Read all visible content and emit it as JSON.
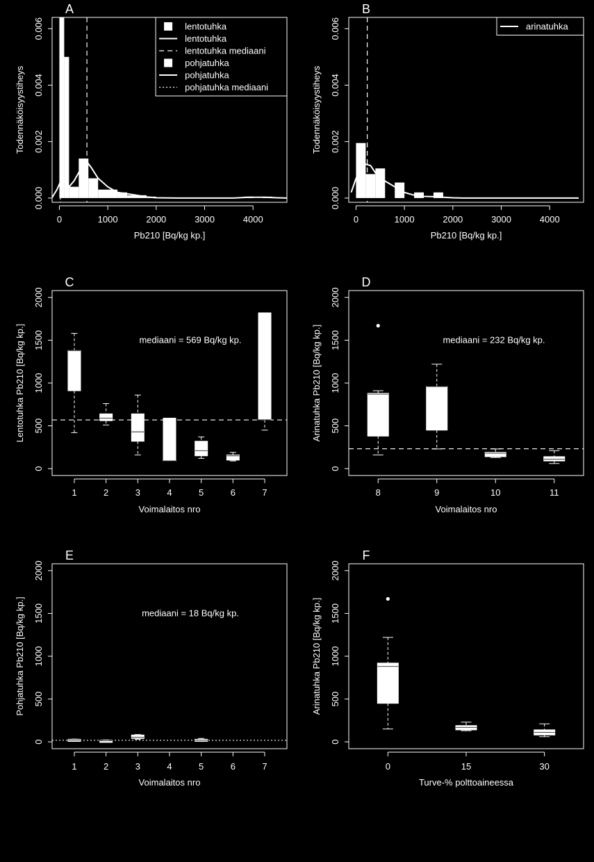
{
  "colors": {
    "background": "#000000",
    "foreground": "#ffffff"
  },
  "chart_data": [
    {
      "panel": "A",
      "type": "histogram",
      "xlabel": "Pb210 [Bq/kg kp.]",
      "ylabel": "Todennäköisyystiheys",
      "xlim": [
        -150,
        4700
      ],
      "ylim": [
        -0.00015,
        0.0064
      ],
      "xticks": [
        0,
        1000,
        2000,
        3000,
        4000
      ],
      "yticks": [
        0.0,
        0.002,
        0.004,
        0.006
      ],
      "ytick_labels": [
        "0.000",
        "0.002",
        "0.004",
        "0.006"
      ],
      "legend": {
        "position": "top-right",
        "entries": [
          {
            "label": "lentotuhka",
            "kind": "box"
          },
          {
            "label": "lentotuhka",
            "kind": "line"
          },
          {
            "label": "lentotuhka mediaani",
            "kind": "dashed"
          },
          {
            "label": "pohjatuhka",
            "kind": "box"
          },
          {
            "label": "pohjatuhka",
            "kind": "line"
          },
          {
            "label": "pohjatuhka mediaani",
            "kind": "dotted"
          }
        ]
      },
      "bars": [
        {
          "x0": 0,
          "x1": 100,
          "y": 0.0064
        },
        {
          "x0": 100,
          "x1": 200,
          "y": 0.005
        },
        {
          "x0": 200,
          "x1": 400,
          "y": 0.0004
        },
        {
          "x0": 400,
          "x1": 600,
          "y": 0.0014
        },
        {
          "x0": 600,
          "x1": 800,
          "y": 0.0007
        },
        {
          "x0": 800,
          "x1": 1200,
          "y": 0.0003
        },
        {
          "x0": 1200,
          "x1": 1400,
          "y": 0.0002
        },
        {
          "x0": 1400,
          "x1": 1800,
          "y": 0.0001
        },
        {
          "x0": 1800,
          "x1": 2000,
          "y": 5e-05
        },
        {
          "x0": 3800,
          "x1": 4000,
          "y": 5e-05
        },
        {
          "x0": 4200,
          "x1": 4400,
          "y": 5e-05
        }
      ],
      "density": [
        [
          -150,
          2e-05
        ],
        [
          -50,
          0.0003
        ],
        [
          30,
          0.0006
        ],
        [
          100,
          0.0006
        ],
        [
          200,
          0.0004
        ],
        [
          300,
          0.0006
        ],
        [
          400,
          0.0009
        ],
        [
          500,
          0.0012
        ],
        [
          560,
          0.0013
        ],
        [
          650,
          0.0011
        ],
        [
          800,
          0.0007
        ],
        [
          1000,
          0.0004
        ],
        [
          1200,
          0.0002
        ],
        [
          1400,
          0.00015
        ],
        [
          1600,
          0.0001
        ],
        [
          1800,
          4e-05
        ],
        [
          2000,
          1e-05
        ],
        [
          2500,
          0
        ],
        [
          3600,
          0
        ],
        [
          3900,
          3e-05
        ],
        [
          4200,
          3e-05
        ],
        [
          4500,
          1e-05
        ],
        [
          4700,
          0
        ]
      ],
      "medians": [
        {
          "x": 569,
          "style": "dashed"
        },
        {
          "x": 18,
          "style": "dotted"
        }
      ]
    },
    {
      "panel": "B",
      "type": "histogram",
      "xlabel": "Pb210 [Bq/kg kp.]",
      "ylabel": "Todennäköisyystiheys",
      "xlim": [
        -150,
        4700
      ],
      "ylim": [
        -0.00015,
        0.0064
      ],
      "xticks": [
        0,
        1000,
        2000,
        3000,
        4000
      ],
      "yticks": [
        0.0,
        0.002,
        0.004,
        0.006
      ],
      "ytick_labels": [
        "0.000",
        "0.002",
        "0.004",
        "0.006"
      ],
      "legend": {
        "position": "top-right",
        "entries": [
          {
            "label": "arinatuhka",
            "kind": "line"
          }
        ]
      },
      "bars": [
        {
          "x0": 0,
          "x1": 200,
          "y": 0.00195
        },
        {
          "x0": 200,
          "x1": 400,
          "y": 0.00085
        },
        {
          "x0": 400,
          "x1": 600,
          "y": 0.00105
        },
        {
          "x0": 800,
          "x1": 1000,
          "y": 0.00055
        },
        {
          "x0": 1200,
          "x1": 1400,
          "y": 0.0002
        },
        {
          "x0": 1600,
          "x1": 1800,
          "y": 0.0002
        }
      ],
      "density": [
        [
          -100,
          0.0002
        ],
        [
          0,
          0.0007
        ],
        [
          100,
          0.00105
        ],
        [
          200,
          0.0012
        ],
        [
          300,
          0.00115
        ],
        [
          400,
          0.0009
        ],
        [
          600,
          0.0006
        ],
        [
          800,
          0.0004
        ],
        [
          1000,
          0.0002
        ],
        [
          1200,
          0.0001
        ],
        [
          1400,
          6e-05
        ],
        [
          1600,
          5e-05
        ],
        [
          1800,
          3e-05
        ],
        [
          2000,
          1e-05
        ],
        [
          2200,
          0
        ],
        [
          4600,
          0
        ]
      ],
      "medians": [
        {
          "x": 232,
          "style": "dashed"
        }
      ]
    },
    {
      "panel": "C",
      "type": "boxplot",
      "xlabel": "Voimalaitos nro",
      "ylabel": "Lentotuhka Pb210 [Bq/kg kp.]",
      "categories": [
        "1",
        "2",
        "3",
        "4",
        "5",
        "6",
        "7"
      ],
      "ylim": [
        -80,
        2080
      ],
      "yticks": [
        0,
        500,
        1000,
        1500,
        2000
      ],
      "annotation": "mediaani = 569 Bq/kg kp.",
      "hline": {
        "y": 569,
        "style": "dashed"
      },
      "boxes": [
        {
          "label": "1",
          "min": 420,
          "q1": 910,
          "median": 1380,
          "q3": 1380,
          "max": 1580,
          "outliers": []
        },
        {
          "label": "2",
          "min": 510,
          "q1": 560,
          "median": 590,
          "q3": 640,
          "max": 760,
          "outliers": []
        },
        {
          "label": "3",
          "min": 160,
          "q1": 320,
          "median": 430,
          "q3": 640,
          "max": 860,
          "outliers": []
        },
        {
          "label": "4",
          "min": 90,
          "q1": 90,
          "median": 90,
          "q3": 590,
          "max": 590,
          "outliers": []
        },
        {
          "label": "5",
          "min": 120,
          "q1": 150,
          "median": 210,
          "q3": 320,
          "max": 370,
          "outliers": []
        },
        {
          "label": "6",
          "min": 90,
          "q1": 100,
          "median": 150,
          "q3": 160,
          "max": 190,
          "outliers": []
        },
        {
          "label": "7",
          "min": 450,
          "q1": 570,
          "median": 570,
          "q3": 1820,
          "max": 1820,
          "outliers": []
        }
      ]
    },
    {
      "panel": "D",
      "type": "boxplot",
      "xlabel": "Voimalaitos nro",
      "ylabel": "Arinatuhka Pb210 [Bq/kg kp.]",
      "categories": [
        "8",
        "9",
        "10",
        "11"
      ],
      "ylim": [
        -80,
        2080
      ],
      "yticks": [
        0,
        500,
        1000,
        1500,
        2000
      ],
      "annotation": "mediaani = 232 Bq/kg kp.",
      "hline": {
        "y": 232,
        "style": "dashed"
      },
      "boxes": [
        {
          "label": "8",
          "min": 160,
          "q1": 380,
          "median": 870,
          "q3": 880,
          "max": 910,
          "outliers": [
            1670
          ]
        },
        {
          "label": "9",
          "min": 230,
          "q1": 450,
          "median": 960,
          "q3": 960,
          "max": 1220,
          "outliers": []
        },
        {
          "label": "10",
          "min": 130,
          "q1": 140,
          "median": 180,
          "q3": 190,
          "max": 230,
          "outliers": []
        },
        {
          "label": "11",
          "min": 60,
          "q1": 90,
          "median": 110,
          "q3": 140,
          "max": 210,
          "outliers": []
        }
      ]
    },
    {
      "panel": "E",
      "type": "boxplot",
      "xlabel": "Voimalaitos nro",
      "ylabel": "Pohjatuhka Pb210 [Bq/kg kp.]",
      "categories": [
        "1",
        "2",
        "3",
        "4",
        "5",
        "6",
        "7"
      ],
      "ylim": [
        -80,
        2080
      ],
      "yticks": [
        0,
        500,
        1000,
        1500,
        2000
      ],
      "annotation": "mediaani = 18 Bq/kg kp.",
      "hline": {
        "y": 18,
        "style": "dotted"
      },
      "boxes": [
        {
          "label": "1",
          "min": 15,
          "q1": 18,
          "median": 22,
          "q3": 30,
          "max": 32,
          "outliers": []
        },
        {
          "label": "2",
          "min": 8,
          "q1": 10,
          "median": 14,
          "q3": 18,
          "max": 22,
          "outliers": []
        },
        {
          "label": "3",
          "min": 30,
          "q1": 40,
          "median": 55,
          "q3": 80,
          "max": 85,
          "outliers": []
        },
        {
          "label": "5",
          "min": 5,
          "q1": 12,
          "median": 18,
          "q3": 30,
          "max": 40,
          "outliers": []
        }
      ]
    },
    {
      "panel": "F",
      "type": "boxplot",
      "xlabel": "Turve-% polttoaineessa",
      "ylabel": "Arinatuhka Pb210 [Bq/kg kp.]",
      "categories": [
        "0",
        "15",
        "30"
      ],
      "ylim": [
        -80,
        2080
      ],
      "yticks": [
        0,
        500,
        1000,
        1500,
        2000
      ],
      "annotation": "",
      "boxes": [
        {
          "label": "0",
          "min": 150,
          "q1": 450,
          "median": 880,
          "q3": 920,
          "max": 1220,
          "outliers": [
            1670
          ]
        },
        {
          "label": "15",
          "min": 130,
          "q1": 140,
          "median": 170,
          "q3": 190,
          "max": 230,
          "outliers": []
        },
        {
          "label": "30",
          "min": 60,
          "q1": 80,
          "median": 110,
          "q3": 140,
          "max": 210,
          "outliers": []
        }
      ]
    }
  ]
}
